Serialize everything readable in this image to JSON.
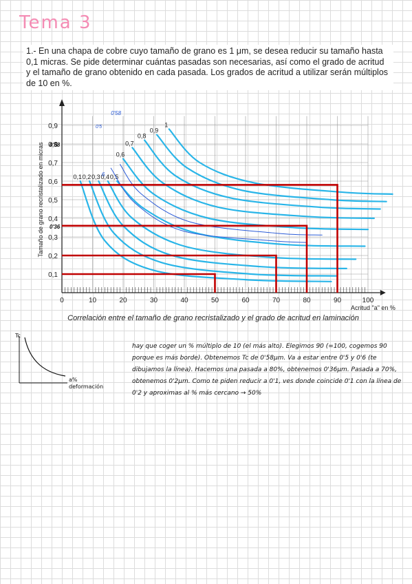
{
  "heading": "Tema 3",
  "problem_text": "1.- En una chapa de cobre cuyo tamaño de grano es 1 μm, se desea reducir su tamaño hasta 0,1 micras. Se pide determinar cuántas pasadas son necesarias, así como el grado de acritud y el tamaño de grano obtenido en cada pasada. Los grados de acritud a utilizar serán múltiplos de 10 en %.",
  "caption": "Correlación entre el tamaño de grano recristalizado y el grado de acritud en laminación",
  "chart_data": {
    "type": "line",
    "xlabel": "Acritud \"a\" en %",
    "ylabel": "Tamaño de grano recristalizado en micras",
    "xlim": [
      0,
      105
    ],
    "ylim": [
      0,
      1.0
    ],
    "x_ticks": [
      "0",
      "10",
      "20",
      "30",
      "40",
      "50",
      "60",
      "70",
      "80",
      "90",
      "100"
    ],
    "y_ticks": [
      "0,1",
      "0,2",
      "0,3",
      "0,4",
      "0,5",
      "0,6",
      "0,7",
      "0,8",
      "0,9"
    ],
    "curve_color": "#29b5e8",
    "series": [
      {
        "name": "0,1",
        "values": [
          [
            6,
            0.6
          ],
          [
            14,
            0.28
          ],
          [
            30,
            0.12
          ],
          [
            60,
            0.07
          ],
          [
            88,
            0.06
          ]
        ]
      },
      {
        "name": "0,2",
        "values": [
          [
            9,
            0.6
          ],
          [
            17,
            0.32
          ],
          [
            33,
            0.16
          ],
          [
            62,
            0.1
          ],
          [
            90,
            0.09
          ]
        ]
      },
      {
        "name": "0,3",
        "values": [
          [
            12,
            0.6
          ],
          [
            20,
            0.36
          ],
          [
            36,
            0.2
          ],
          [
            65,
            0.14
          ],
          [
            93,
            0.13
          ]
        ]
      },
      {
        "name": "0,4",
        "values": [
          [
            15,
            0.6
          ],
          [
            23,
            0.4
          ],
          [
            40,
            0.25
          ],
          [
            68,
            0.19
          ],
          [
            96,
            0.18
          ]
        ]
      },
      {
        "name": "0,5",
        "values": [
          [
            18,
            0.6
          ],
          [
            27,
            0.45
          ],
          [
            44,
            0.32
          ],
          [
            72,
            0.26
          ],
          [
            99,
            0.25
          ]
        ]
      },
      {
        "name": "0,6",
        "values": [
          [
            20,
            0.72
          ],
          [
            30,
            0.53
          ],
          [
            48,
            0.4
          ],
          [
            76,
            0.35
          ],
          [
            100,
            0.34
          ]
        ]
      },
      {
        "name": "0,7",
        "values": [
          [
            23,
            0.78
          ],
          [
            33,
            0.59
          ],
          [
            51,
            0.46
          ],
          [
            80,
            0.41
          ],
          [
            102,
            0.4
          ]
        ]
      },
      {
        "name": "0,8",
        "values": [
          [
            27,
            0.82
          ],
          [
            37,
            0.63
          ],
          [
            55,
            0.51
          ],
          [
            84,
            0.46
          ],
          [
            104,
            0.45
          ]
        ]
      },
      {
        "name": "0,9",
        "values": [
          [
            31,
            0.85
          ],
          [
            41,
            0.67
          ],
          [
            59,
            0.55
          ],
          [
            88,
            0.5
          ],
          [
            106,
            0.49
          ]
        ]
      },
      {
        "name": "1",
        "values": [
          [
            35,
            0.88
          ],
          [
            45,
            0.7
          ],
          [
            63,
            0.59
          ],
          [
            92,
            0.54
          ],
          [
            108,
            0.53
          ]
        ]
      }
    ],
    "hand_curves": [
      {
        "values": [
          [
            19,
            0.69
          ],
          [
            26,
            0.53
          ],
          [
            42,
            0.38
          ],
          [
            70,
            0.32
          ],
          [
            85,
            0.31
          ]
        ]
      },
      {
        "values": [
          [
            16,
            0.67
          ],
          [
            24,
            0.48
          ],
          [
            40,
            0.33
          ],
          [
            68,
            0.28
          ],
          [
            80,
            0.27
          ]
        ]
      }
    ],
    "red_paths": [
      {
        "values": [
          [
            0,
            0.58
          ],
          [
            90,
            0.58
          ],
          [
            90,
            0
          ]
        ]
      },
      {
        "values": [
          [
            0,
            0.36
          ],
          [
            80,
            0.36
          ],
          [
            80,
            0
          ]
        ]
      },
      {
        "values": [
          [
            0,
            0.2
          ],
          [
            70,
            0.2
          ],
          [
            70,
            0
          ]
        ]
      },
      {
        "values": [
          [
            0,
            0.1
          ],
          [
            50,
            0.1
          ],
          [
            50,
            0
          ]
        ]
      }
    ],
    "hand_annotations": {
      "y_058": "0'58",
      "y_036": "0'36",
      "top_058": "0'58",
      "top_05": "0'5",
      "mark_6": "6"
    },
    "accent_red": "#c00000",
    "hand_blue": "#2a5bd7"
  },
  "mini_chart": {
    "ylabel": "Tc",
    "xlabel_1": "a%",
    "xlabel_2": "deformación"
  },
  "handwritten_note": "hay que coger un % múltiplo de 10 (el más alto). Elegimos 90 (=100, cogemos 90 porque es más borde). Obtenemos Tc de 0'58μm. Va a estar entre 0'5 y 0'6 (te dibujamos la línea). Hacemos una pasada a 80%, obtenemos 0'36μm. Pasada a 70%, obtenemos 0'2μm. Como te piden reducir a 0'1, ves donde coincide 0'1 con la línea de 0'2 y aproximas al % más cercano → 50%"
}
